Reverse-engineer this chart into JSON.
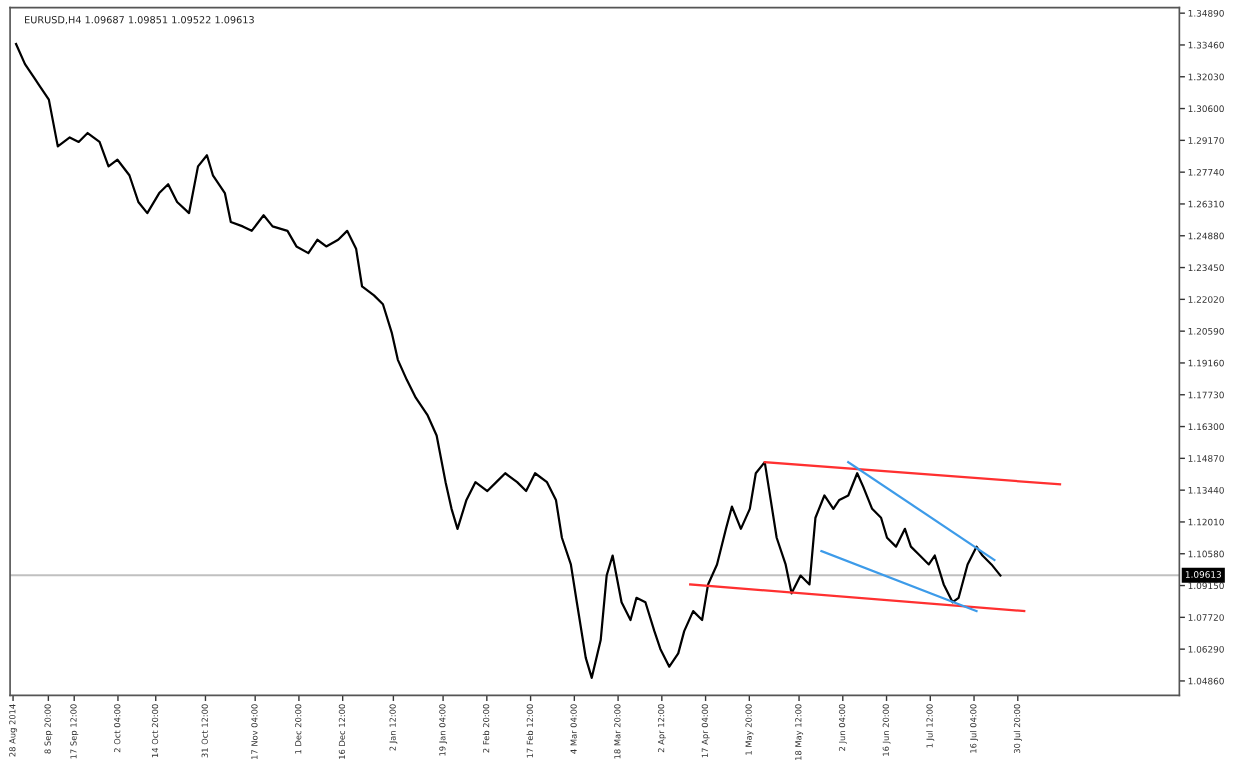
{
  "chart_data": {
    "type": "line",
    "title": "EURUSD,H4 1.09687 1.09851 1.09522 1.09613",
    "xlim": [
      "2014-08-27",
      "2015-09-23"
    ],
    "ylim": [
      1.0421,
      1.3514
    ],
    "xticks": [
      {
        "value": "2014-08-28",
        "label": "28 Aug 2014"
      },
      {
        "value": "2014-09-08T20:00",
        "label": "8 Sep 20:00"
      },
      {
        "value": "2014-09-17T12:00",
        "label": "17 Sep 12:00"
      },
      {
        "value": "2014-10-02T04:00",
        "label": "2 Oct 04:00"
      },
      {
        "value": "2014-10-14T20:00",
        "label": "14 Oct 20:00"
      },
      {
        "value": "2014-10-31T12:00",
        "label": "31 Oct 12:00"
      },
      {
        "value": "2014-11-17T04:00",
        "label": "17 Nov 04:00"
      },
      {
        "value": "2014-12-01T20:00",
        "label": "1 Dec 20:00"
      },
      {
        "value": "2014-12-16T12:00",
        "label": "16 Dec 12:00"
      },
      {
        "value": "2015-01-02T12:00",
        "label": "2 Jan 12:00"
      },
      {
        "value": "2015-01-19T04:00",
        "label": "19 Jan 04:00"
      },
      {
        "value": "2015-02-02T20:00",
        "label": "2 Feb 20:00"
      },
      {
        "value": "2015-02-17T12:00",
        "label": "17 Feb 12:00"
      },
      {
        "value": "2015-03-04T04:00",
        "label": "4 Mar 04:00"
      },
      {
        "value": "2015-03-18T20:00",
        "label": "18 Mar 20:00"
      },
      {
        "value": "2015-04-02T12:00",
        "label": "2 Apr 12:00"
      },
      {
        "value": "2015-04-17T04:00",
        "label": "17 Apr 04:00"
      },
      {
        "value": "2015-05-01T20:00",
        "label": "1 May 20:00"
      },
      {
        "value": "2015-05-18T12:00",
        "label": "18 May 12:00"
      },
      {
        "value": "2015-06-02T04:00",
        "label": "2 Jun 04:00"
      },
      {
        "value": "2015-06-16T20:00",
        "label": "16 Jun 20:00"
      },
      {
        "value": "2015-07-01T12:00",
        "label": "1 Jul 12:00"
      },
      {
        "value": "2015-07-16T04:00",
        "label": "16 Jul 04:00"
      },
      {
        "value": "2015-07-30T20:00",
        "label": "30 Jul 20:00"
      }
    ],
    "yticks": [
      {
        "value": 1.3489,
        "label": "1.34890"
      },
      {
        "value": 1.3346,
        "label": "1.33460"
      },
      {
        "value": 1.3203,
        "label": "1.32030"
      },
      {
        "value": 1.306,
        "label": "1.30600"
      },
      {
        "value": 1.2917,
        "label": "1.29170"
      },
      {
        "value": 1.2774,
        "label": "1.27740"
      },
      {
        "value": 1.2631,
        "label": "1.26310"
      },
      {
        "value": 1.2488,
        "label": "1.24880"
      },
      {
        "value": 1.2345,
        "label": "1.23450"
      },
      {
        "value": 1.2202,
        "label": "1.22020"
      },
      {
        "value": 1.2059,
        "label": "1.20590"
      },
      {
        "value": 1.1916,
        "label": "1.19160"
      },
      {
        "value": 1.1773,
        "label": "1.17730"
      },
      {
        "value": 1.163,
        "label": "1.16300"
      },
      {
        "value": 1.1487,
        "label": "1.14870"
      },
      {
        "value": 1.1344,
        "label": "1.13440"
      },
      {
        "value": 1.1201,
        "label": "1.12010"
      },
      {
        "value": 1.1058,
        "label": "1.10580"
      },
      {
        "value": 1.0915,
        "label": "1.09150"
      },
      {
        "value": 1.0772,
        "label": "1.07720"
      },
      {
        "value": 1.0629,
        "label": "1.06290"
      },
      {
        "value": 1.0486,
        "label": "1.04860"
      }
    ],
    "grid": false,
    "ref_lines": [
      {
        "axis": "y",
        "value": 1.09613,
        "label": "1.09613",
        "color": "#c0c0c0"
      }
    ],
    "series": [
      {
        "color": "#000000",
        "x": [
          "2014-08-29",
          "2014-09-01",
          "2014-09-04",
          "2014-09-06",
          "2014-09-09",
          "2014-09-12",
          "2014-09-16",
          "2014-09-19",
          "2014-09-22",
          "2014-09-26",
          "2014-09-29",
          "2014-10-02",
          "2014-10-06",
          "2014-10-09",
          "2014-10-12",
          "2014-10-16",
          "2014-10-19",
          "2014-10-22",
          "2014-10-26",
          "2014-10-29",
          "2014-11-01",
          "2014-11-03",
          "2014-11-07",
          "2014-11-09",
          "2014-11-13",
          "2014-11-16",
          "2014-11-20",
          "2014-11-23",
          "2014-11-28",
          "2014-12-01",
          "2014-12-05",
          "2014-12-08",
          "2014-12-11",
          "2014-12-15",
          "2014-12-18",
          "2014-12-21",
          "2014-12-23",
          "2014-12-27",
          "2014-12-30",
          "2015-01-02",
          "2015-01-04",
          "2015-01-07",
          "2015-01-10",
          "2015-01-14",
          "2015-01-17",
          "2015-01-20",
          "2015-01-22",
          "2015-01-24",
          "2015-01-27",
          "2015-01-30",
          "2015-02-03",
          "2015-02-06",
          "2015-02-09",
          "2015-02-13",
          "2015-02-16",
          "2015-02-19",
          "2015-02-23",
          "2015-02-26",
          "2015-02-28",
          "2015-03-03",
          "2015-03-05",
          "2015-03-08",
          "2015-03-10",
          "2015-03-13",
          "2015-03-15",
          "2015-03-17",
          "2015-03-20",
          "2015-03-23",
          "2015-03-25",
          "2015-03-28",
          "2015-03-31",
          "2015-04-02",
          "2015-04-05",
          "2015-04-08",
          "2015-04-10",
          "2015-04-13",
          "2015-04-16",
          "2015-04-18",
          "2015-04-21",
          "2015-04-24",
          "2015-04-26",
          "2015-04-29",
          "2015-05-02",
          "2015-05-04",
          "2015-05-07",
          "2015-05-09",
          "2015-05-11",
          "2015-05-14",
          "2015-05-16",
          "2015-05-19",
          "2015-05-22",
          "2015-05-24",
          "2015-05-27",
          "2015-05-30",
          "2015-06-01",
          "2015-06-04",
          "2015-06-07",
          "2015-06-09",
          "2015-06-12",
          "2015-06-15",
          "2015-06-17",
          "2015-06-20",
          "2015-06-23",
          "2015-06-25",
          "2015-06-28",
          "2015-07-01",
          "2015-07-03",
          "2015-07-06",
          "2015-07-09",
          "2015-07-11",
          "2015-07-14",
          "2015-07-17",
          "2015-07-19",
          "2015-07-22",
          "2015-07-25"
        ],
        "values": [
          1.335,
          1.326,
          1.32,
          1.316,
          1.31,
          1.289,
          1.293,
          1.291,
          1.295,
          1.291,
          1.28,
          1.283,
          1.276,
          1.264,
          1.259,
          1.268,
          1.272,
          1.264,
          1.259,
          1.28,
          1.285,
          1.276,
          1.268,
          1.255,
          1.253,
          1.251,
          1.258,
          1.253,
          1.251,
          1.244,
          1.241,
          1.247,
          1.244,
          1.247,
          1.251,
          1.243,
          1.226,
          1.222,
          1.218,
          1.205,
          1.193,
          1.184,
          1.176,
          1.168,
          1.159,
          1.138,
          1.126,
          1.117,
          1.13,
          1.138,
          1.134,
          1.138,
          1.142,
          1.138,
          1.134,
          1.142,
          1.138,
          1.13,
          1.113,
          1.101,
          1.084,
          1.059,
          1.05,
          1.067,
          1.096,
          1.105,
          1.084,
          1.076,
          1.086,
          1.084,
          1.071,
          1.063,
          1.055,
          1.061,
          1.071,
          1.08,
          1.076,
          1.092,
          1.101,
          1.117,
          1.127,
          1.117,
          1.126,
          1.142,
          1.147,
          1.13,
          1.113,
          1.101,
          1.088,
          1.096,
          1.092,
          1.122,
          1.132,
          1.126,
          1.13,
          1.132,
          1.142,
          1.136,
          1.126,
          1.122,
          1.113,
          1.109,
          1.117,
          1.109,
          1.105,
          1.101,
          1.105,
          1.092,
          1.084,
          1.086,
          1.101,
          1.109,
          1.105,
          1.101,
          1.096
        ]
      },
      {
        "color": "#ff3030",
        "x": [
          "2015-05-07",
          "2015-08-14"
        ],
        "values": [
          1.147,
          1.137
        ]
      },
      {
        "color": "#ff3030",
        "x": [
          "2015-04-12",
          "2015-08-02"
        ],
        "values": [
          1.092,
          1.08
        ]
      },
      {
        "color": "#3d9be9",
        "x": [
          "2015-06-04",
          "2015-07-23"
        ],
        "values": [
          1.147,
          1.103
        ]
      },
      {
        "color": "#3d9be9",
        "x": [
          "2015-05-26",
          "2015-07-17"
        ],
        "values": [
          1.107,
          1.08
        ]
      }
    ]
  }
}
